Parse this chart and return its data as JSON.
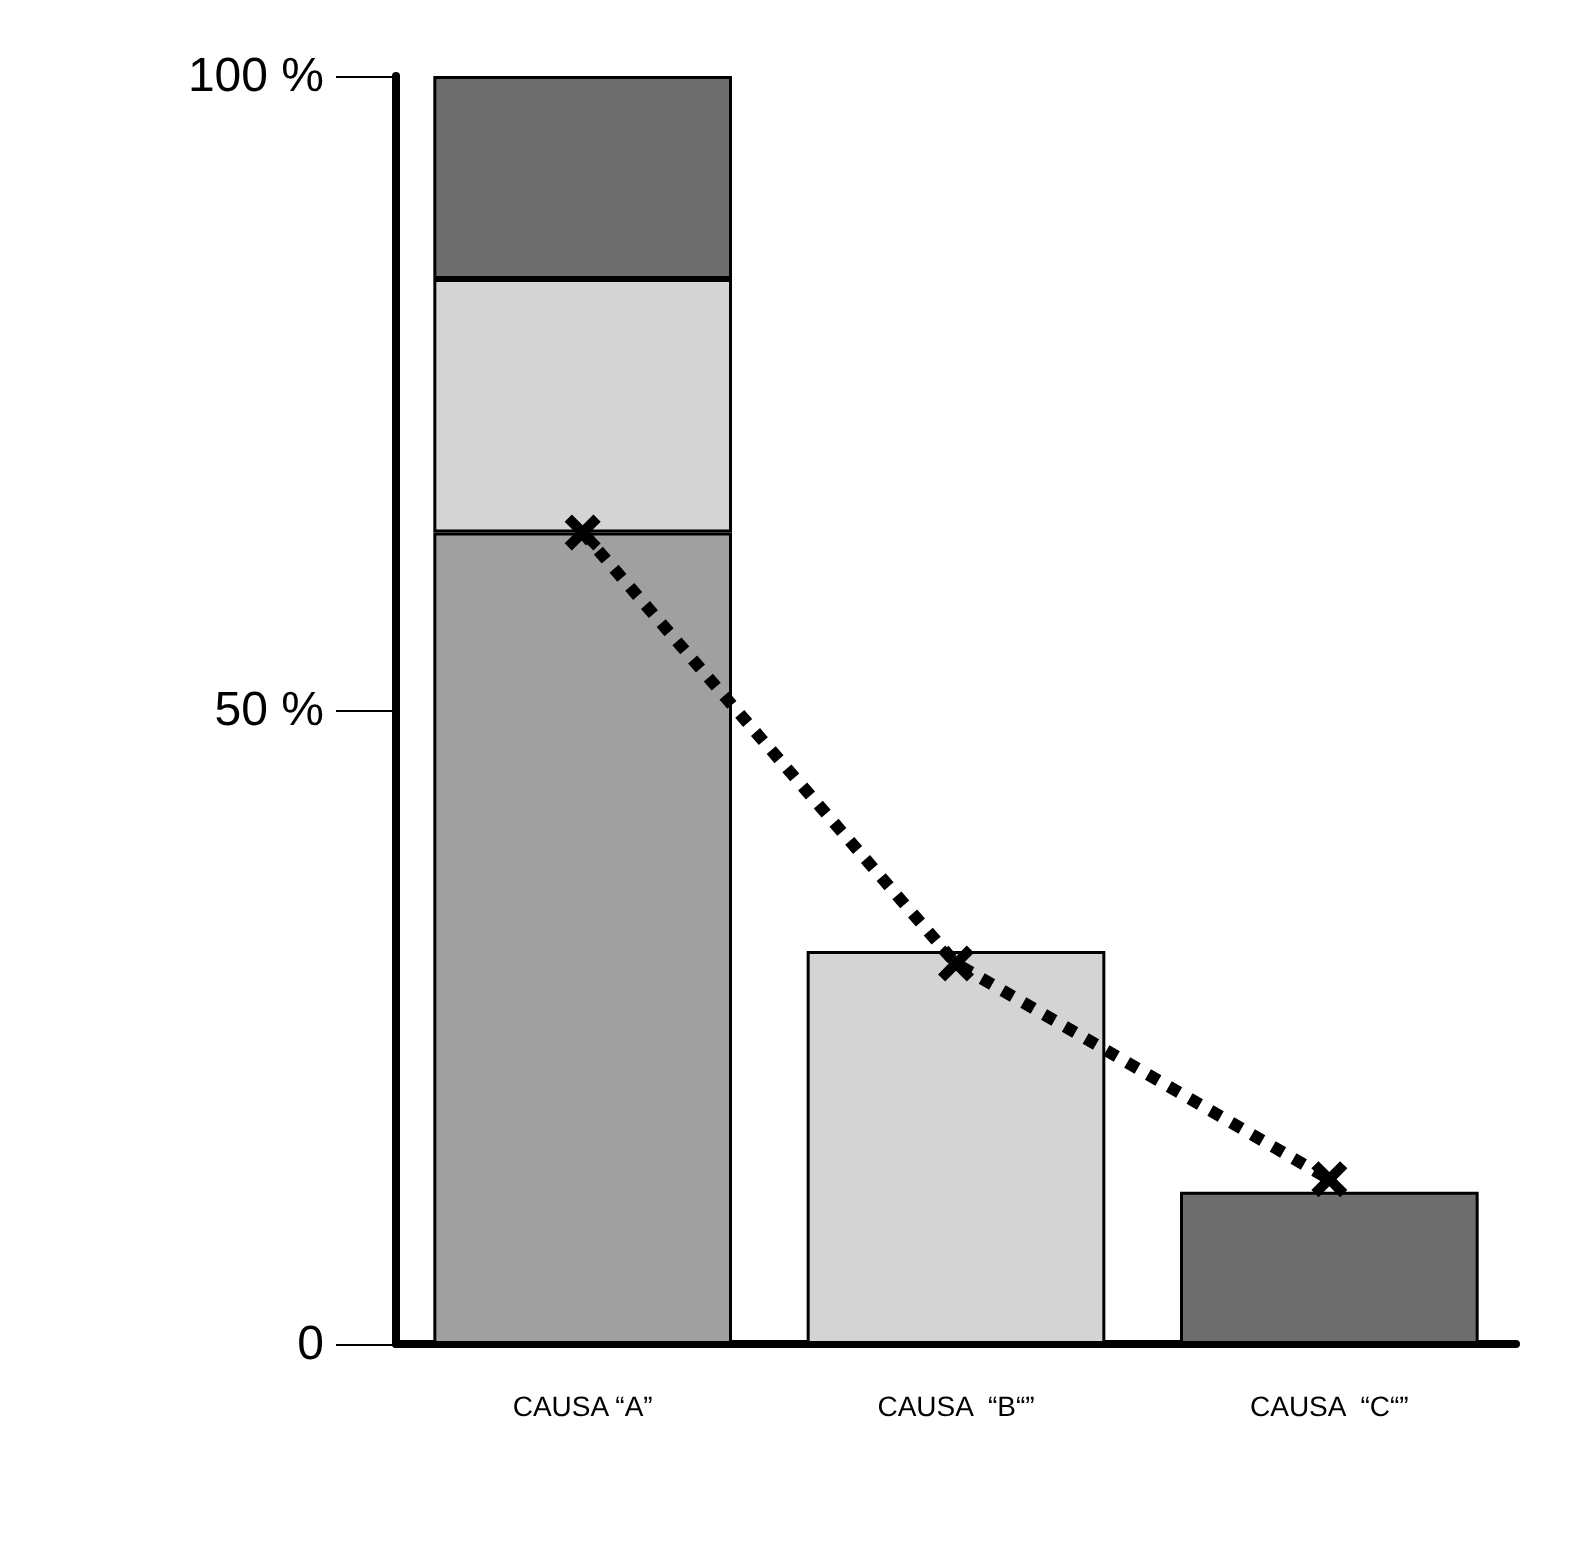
{
  "chart_data": {
    "type": "bar",
    "stacked": true,
    "categories": [
      "CAUSA “A”",
      "CAUSA  “B“”",
      "CAUSA  “C“”"
    ],
    "series": [
      {
        "color": "#a0a0a0",
        "values": [
          64,
          null,
          null
        ]
      },
      {
        "color": "#d4d4d4",
        "values": [
          20,
          31,
          null
        ]
      },
      {
        "color": "#6e6e6e",
        "values": [
          16,
          null,
          12
        ]
      },
      {
        "type": "line",
        "color": "#000000",
        "values": [
          64,
          30,
          13
        ]
      }
    ],
    "ylim": [
      0,
      100
    ],
    "yticks": [
      {
        "value": 0,
        "label": "0"
      },
      {
        "value": 50,
        "label": "50 %"
      },
      {
        "value": 100,
        "label": "100 %"
      }
    ],
    "marker": "cross",
    "line_style": "dotted"
  }
}
